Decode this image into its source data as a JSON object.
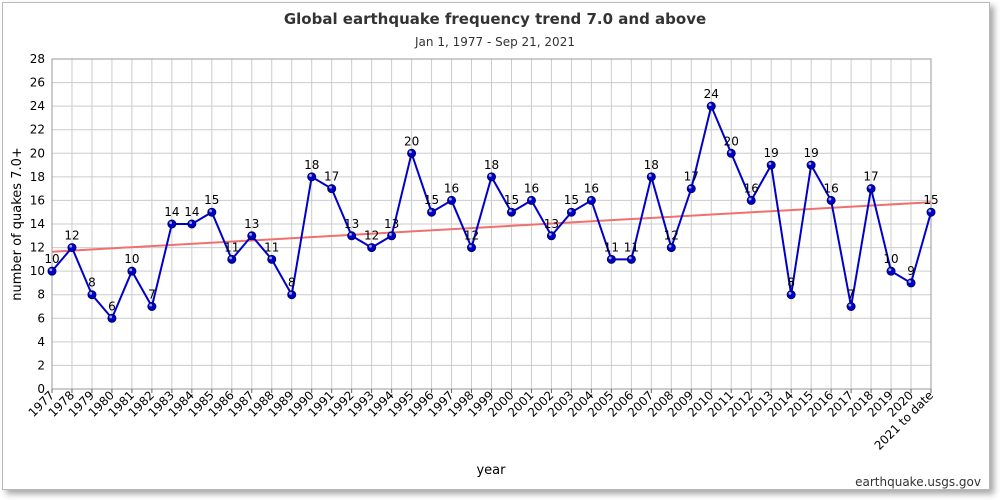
{
  "chart_data": {
    "type": "line",
    "title": "Global earthquake frequency trend 7.0 and above",
    "subtitle": "Jan 1, 1977 - Sep 21, 2021",
    "xlabel": "year",
    "ylabel": "number of quakes 7.0+",
    "source": "earthquake.usgs.gov",
    "ylim": [
      0,
      28
    ],
    "yticks": [
      0,
      2,
      4,
      6,
      8,
      10,
      12,
      14,
      16,
      18,
      20,
      22,
      24,
      26,
      28
    ],
    "grid": true,
    "categories": [
      "1977",
      "1978",
      "1979",
      "1980",
      "1981",
      "1982",
      "1983",
      "1984",
      "1985",
      "1986",
      "1987",
      "1988",
      "1989",
      "1990",
      "1991",
      "1992",
      "1993",
      "1994",
      "1995",
      "1996",
      "1997",
      "1998",
      "1999",
      "2000",
      "2001",
      "2002",
      "2003",
      "2004",
      "2005",
      "2006",
      "2007",
      "2008",
      "2009",
      "2010",
      "2011",
      "2012",
      "2013",
      "2014",
      "2015",
      "2016",
      "2017",
      "2018",
      "2019",
      "2020",
      "2021 to date"
    ],
    "series": [
      {
        "name": "quakes",
        "color": "#0000cc",
        "marker_color": "#0000cc",
        "values": [
          10,
          12,
          8,
          6,
          10,
          7,
          14,
          14,
          15,
          11,
          13,
          11,
          8,
          18,
          17,
          13,
          12,
          13,
          20,
          15,
          16,
          12,
          18,
          15,
          16,
          13,
          15,
          16,
          11,
          11,
          18,
          12,
          17,
          24,
          20,
          16,
          19,
          8,
          19,
          16,
          7,
          17,
          10,
          9,
          15
        ]
      }
    ],
    "trendline": {
      "color": "#f07070",
      "start": 11.65,
      "end": 15.85
    }
  }
}
